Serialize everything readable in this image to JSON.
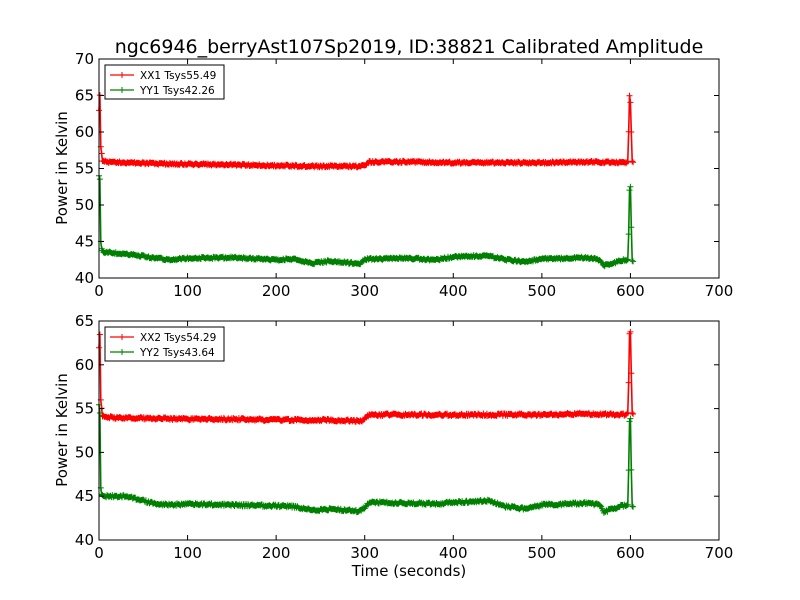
{
  "title": "ngc6946_berryAst107Sp2019, ID:38821 Calibrated Amplitude",
  "xlabel": "Time (seconds)",
  "colors": {
    "red": "#ff0000",
    "green": "#008000"
  },
  "chart_data": [
    {
      "type": "line",
      "title": "ngc6946_berryAst107Sp2019, ID:38821 Calibrated Amplitude",
      "xlabel": "",
      "ylabel": "Power in Kelvin",
      "xlim": [
        0,
        700
      ],
      "ylim": [
        40,
        70
      ],
      "xticks": [
        "0",
        "100",
        "200",
        "300",
        "400",
        "500",
        "600",
        "700"
      ],
      "yticks": [
        "40",
        "45",
        "50",
        "55",
        "60",
        "65",
        "70"
      ],
      "legend": "top-left",
      "series": [
        {
          "name": "XX1 Tsys55.49",
          "color": "#ff0000",
          "x": [
            0,
            1,
            2,
            4,
            10,
            50,
            100,
            150,
            200,
            250,
            295,
            300,
            305,
            350,
            400,
            450,
            500,
            550,
            595,
            597,
            598,
            599,
            600,
            601,
            602,
            603
          ],
          "y": [
            63,
            65,
            58,
            56,
            55.9,
            55.7,
            55.6,
            55.5,
            55.4,
            55.3,
            55.3,
            55.4,
            55.9,
            55.9,
            55.8,
            55.8,
            55.8,
            55.9,
            55.8,
            56,
            60,
            65,
            64,
            60,
            56,
            55.9
          ]
        },
        {
          "name": "YY1 Tsys42.26",
          "color": "#008000",
          "x": [
            0,
            1,
            2,
            3,
            5,
            10,
            30,
            50,
            60,
            80,
            100,
            150,
            200,
            220,
            240,
            260,
            280,
            295,
            300,
            305,
            350,
            380,
            400,
            420,
            440,
            460,
            480,
            500,
            550,
            565,
            570,
            590,
            597,
            598,
            599,
            600,
            601,
            602,
            603
          ],
          "y": [
            54,
            53.5,
            45,
            44,
            43.5,
            43.5,
            43.3,
            43,
            42.8,
            42.5,
            42.7,
            42.8,
            42.5,
            42.6,
            42,
            42.3,
            42.1,
            42,
            42.5,
            42.6,
            42.7,
            42.5,
            42.9,
            43,
            43,
            42.5,
            42.2,
            42.6,
            42.8,
            42.5,
            41.7,
            42.4,
            42.5,
            46,
            52,
            52.5,
            47,
            42.4,
            42.3
          ]
        }
      ]
    },
    {
      "type": "line",
      "title": "",
      "xlabel": "Time (seconds)",
      "ylabel": "Power in Kelvin",
      "xlim": [
        0,
        700
      ],
      "ylim": [
        40,
        65
      ],
      "xticks": [
        "0",
        "100",
        "200",
        "300",
        "400",
        "500",
        "600",
        "700"
      ],
      "yticks": [
        "40",
        "45",
        "50",
        "55",
        "60",
        "65"
      ],
      "legend": "top-left",
      "series": [
        {
          "name": "XX2 Tsys54.29",
          "color": "#ff0000",
          "x": [
            0,
            1,
            2,
            4,
            10,
            50,
            100,
            150,
            200,
            250,
            295,
            300,
            305,
            350,
            400,
            450,
            500,
            550,
            595,
            597,
            598,
            599,
            600,
            601,
            602,
            603
          ],
          "y": [
            62,
            63.5,
            56,
            54.1,
            54,
            53.9,
            53.8,
            53.8,
            53.7,
            53.7,
            53.6,
            53.8,
            54.3,
            54.3,
            54.3,
            54.3,
            54.3,
            54.4,
            54.3,
            54.5,
            58,
            63.5,
            63.7,
            59,
            54.5,
            54.4
          ]
        },
        {
          "name": "YY2 Tsys43.64",
          "color": "#008000",
          "x": [
            0,
            1,
            2,
            3,
            5,
            10,
            30,
            50,
            60,
            80,
            100,
            150,
            200,
            220,
            240,
            260,
            280,
            295,
            300,
            305,
            350,
            380,
            400,
            420,
            440,
            460,
            480,
            500,
            550,
            565,
            570,
            590,
            597,
            598,
            599,
            600,
            601,
            602,
            603
          ],
          "y": [
            55.5,
            54.5,
            46,
            45.2,
            45,
            45,
            45,
            44.5,
            44.2,
            44,
            44.1,
            44,
            43.9,
            43.8,
            43.4,
            43.5,
            43.4,
            43.3,
            43.7,
            44.3,
            44.2,
            44.1,
            44.3,
            44.4,
            44.5,
            43.8,
            43.6,
            44,
            44.2,
            44,
            43.2,
            43.9,
            44,
            48,
            53.5,
            53.8,
            48,
            43.9,
            43.8
          ]
        }
      ]
    }
  ]
}
